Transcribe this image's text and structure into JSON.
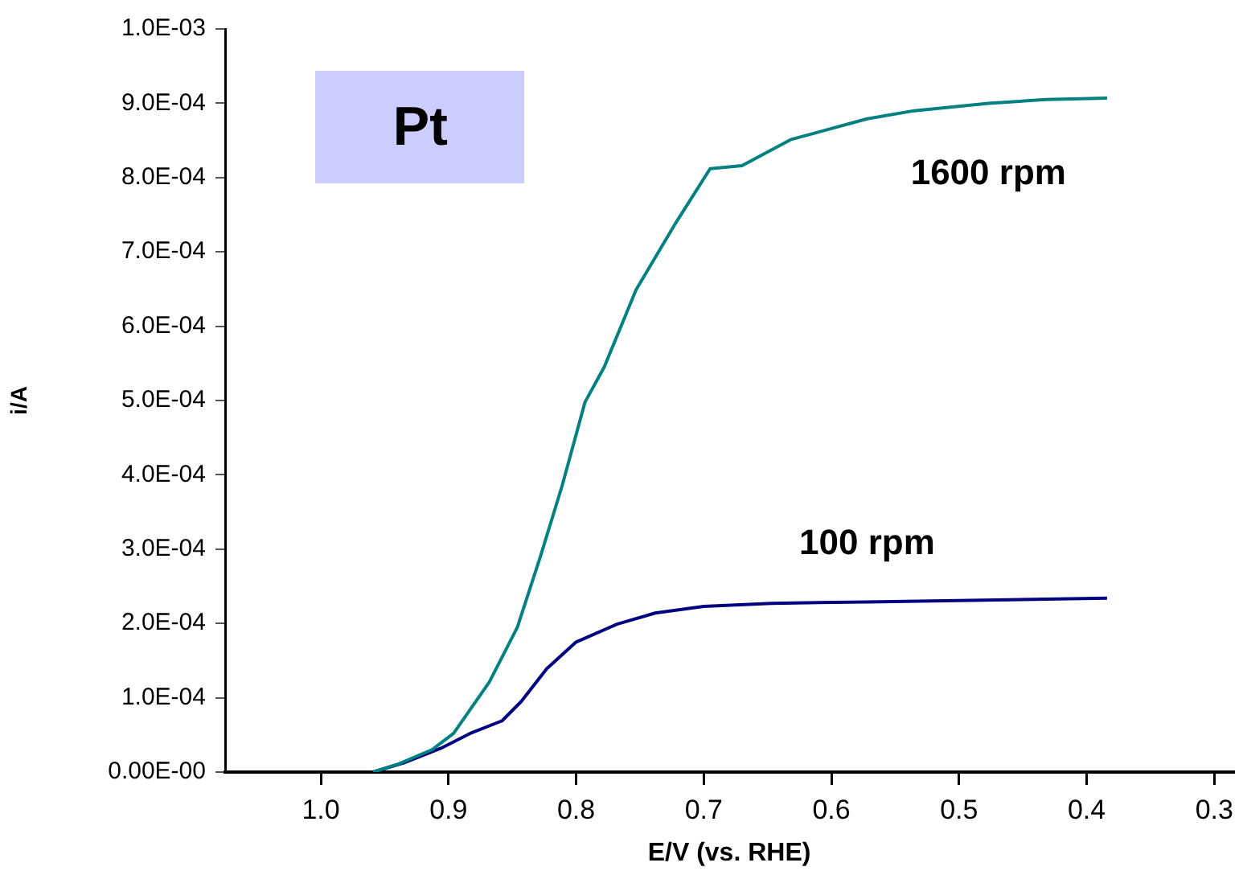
{
  "chart_data": {
    "type": "line",
    "xlabel": "E/V (vs. RHE)",
    "ylabel": "i/A",
    "annotations": [
      "Pt"
    ],
    "series": [
      {
        "name": "1600 rpm",
        "color": "#008080",
        "x": [
          0.959,
          0.939,
          0.913,
          0.896,
          0.868,
          0.846,
          0.828,
          0.811,
          0.793,
          0.778,
          0.753,
          0.723,
          0.695,
          0.67,
          0.632,
          0.572,
          0.535,
          0.477,
          0.432,
          0.384
        ],
        "values": [
          0,
          1.1e-05,
          3e-05,
          5.2e-05,
          0.000121,
          0.000195,
          0.00029,
          0.000385,
          0.000498,
          0.000545,
          0.000649,
          0.000736,
          0.000812,
          0.000816,
          0.000851,
          0.000879,
          0.00089,
          0.0009,
          0.000905,
          0.000907
        ]
      },
      {
        "name": "100 rpm",
        "color": "#000080",
        "x": [
          0.959,
          0.934,
          0.906,
          0.883,
          0.858,
          0.843,
          0.823,
          0.8,
          0.768,
          0.738,
          0.7,
          0.647,
          0.572,
          0.384
        ],
        "values": [
          0,
          1.3e-05,
          3.2e-05,
          5.2e-05,
          6.9e-05,
          9.5e-05,
          0.000139,
          0.000175,
          0.000199,
          0.000214,
          0.000223,
          0.000227,
          0.000229,
          0.000234
        ]
      }
    ],
    "xlim": [
      1.075,
      0.285
    ],
    "xticks": [
      {
        "value": 1.0,
        "label": "1.0"
      },
      0.9,
      0.8,
      0.7,
      0.6,
      0.5,
      0.4,
      0.3
    ],
    "ylim": [
      0,
      0.001
    ],
    "yticks": [
      {
        "value": 0,
        "label": "0.00E-00"
      },
      {
        "value": 0.0001,
        "label": "1.0E-04"
      },
      {
        "value": 0.0002,
        "label": "2.0E-04"
      },
      {
        "value": 0.0003,
        "label": "3.0E-04"
      },
      {
        "value": 0.0004,
        "label": "4.0E-04"
      },
      {
        "value": 0.0005,
        "label": "5.0E-04"
      },
      {
        "value": 0.0006,
        "label": "6.0E-04"
      },
      {
        "value": 0.0007,
        "label": "7.0E-04"
      },
      {
        "value": 0.0008,
        "label": "8.0E-04"
      },
      {
        "value": 0.0009,
        "label": "9.0E-04"
      },
      {
        "value": 0.001,
        "label": "1.0E-03"
      }
    ],
    "grid": false,
    "legend": false
  }
}
